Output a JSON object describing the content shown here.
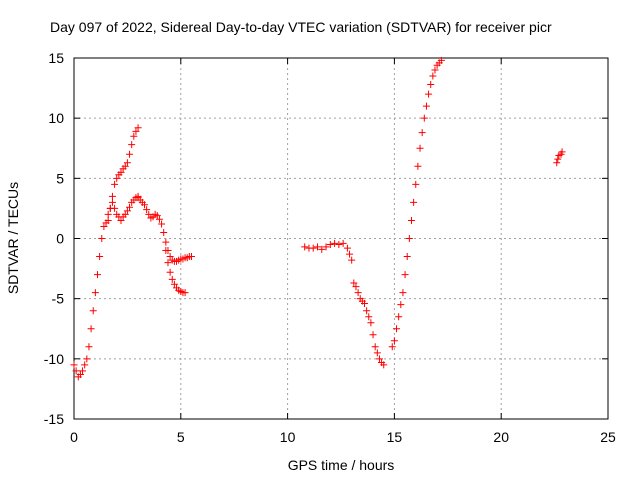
{
  "chart_data": {
    "type": "scatter",
    "title": "Day 097 of 2022, Sidereal Day-to-day VTEC variation (SDTVAR) for receiver picr",
    "xlabel": "GPS time / hours",
    "ylabel": "SDTVAR / TECUs",
    "xlim": [
      0,
      25
    ],
    "ylim": [
      -15,
      15
    ],
    "xticks": [
      0,
      5,
      10,
      15,
      20,
      25
    ],
    "yticks": [
      -15,
      -10,
      -5,
      0,
      5,
      10,
      15
    ],
    "xtick_labels": [
      "0",
      "5",
      "10",
      "15",
      "20",
      "25"
    ],
    "ytick_labels": [
      "-15",
      "-10",
      "-5",
      "0",
      "5",
      "10",
      "15"
    ],
    "grid": true,
    "marker": "+",
    "color": "#ff0000",
    "series": [
      {
        "name": "segment-1-lower",
        "x": [
          0.0,
          0.1,
          0.2,
          0.3,
          0.4,
          0.5,
          0.6,
          0.7,
          0.8,
          0.9,
          1.0,
          1.1,
          1.2,
          1.3,
          1.4,
          1.5,
          1.6,
          1.7,
          1.8,
          1.9,
          2.0,
          2.1,
          2.2,
          2.3,
          2.4,
          2.5,
          2.6,
          2.7,
          2.8,
          2.9,
          3.0
        ],
        "y": [
          -10.5,
          -11.0,
          -11.5,
          -11.3,
          -11.0,
          -10.5,
          -10.0,
          -9.0,
          -7.5,
          -6.0,
          -4.5,
          -3.0,
          -1.5,
          0.0,
          1.0,
          1.3,
          2.0,
          2.5,
          3.0,
          2.5,
          2.0,
          1.8,
          1.5,
          1.8,
          2.0,
          2.3,
          2.6,
          3.0,
          3.2,
          3.4,
          3.5
        ]
      },
      {
        "name": "segment-1-upper",
        "x": [
          1.6,
          1.7,
          1.8,
          1.9,
          2.0,
          2.1,
          2.2,
          2.3,
          2.4,
          2.5,
          2.6,
          2.7,
          2.8,
          2.9,
          3.0
        ],
        "y": [
          1.5,
          2.5,
          3.5,
          4.5,
          5.0,
          5.3,
          5.5,
          5.8,
          6.0,
          6.3,
          7.0,
          7.8,
          8.5,
          8.9,
          9.2
        ]
      },
      {
        "name": "segment-1-decay",
        "x": [
          3.0,
          3.1,
          3.2,
          3.3,
          3.4,
          3.5,
          3.6,
          3.7,
          3.8,
          3.9,
          4.0,
          4.1,
          4.2,
          4.3,
          4.4,
          4.5,
          4.6,
          4.7,
          4.8,
          4.9,
          5.0,
          5.1,
          5.2,
          5.3,
          5.4,
          5.5
        ],
        "y": [
          3.4,
          3.2,
          3.0,
          2.8,
          2.4,
          2.0,
          1.7,
          1.8,
          2.0,
          1.9,
          1.6,
          1.2,
          0.5,
          -0.3,
          -1.0,
          -1.5,
          -1.8,
          -1.9,
          -1.9,
          -1.8,
          -1.7,
          -1.7,
          -1.6,
          -1.6,
          -1.5,
          -1.5
        ]
      },
      {
        "name": "segment-1-low-branch",
        "x": [
          4.3,
          4.4,
          4.5,
          4.6,
          4.7,
          4.8,
          4.9,
          5.0,
          5.1,
          5.2
        ],
        "y": [
          -1.0,
          -2.0,
          -2.8,
          -3.4,
          -3.8,
          -4.1,
          -4.3,
          -4.4,
          -4.5,
          -4.5
        ]
      },
      {
        "name": "segment-2",
        "x": [
          10.8,
          11.0,
          11.2,
          11.4,
          11.6,
          11.8,
          12.0,
          12.2,
          12.4,
          12.6,
          12.8,
          12.9,
          13.0
        ],
        "y": [
          -0.7,
          -0.8,
          -0.8,
          -0.7,
          -0.9,
          -0.7,
          -0.5,
          -0.4,
          -0.5,
          -0.4,
          -0.8,
          -1.3,
          -1.8
        ]
      },
      {
        "name": "segment-3",
        "x": [
          13.1,
          13.2,
          13.3,
          13.4,
          13.5,
          13.6,
          13.7,
          13.8,
          13.9,
          14.0,
          14.1,
          14.2,
          14.3,
          14.4,
          14.5
        ],
        "y": [
          -3.7,
          -4.0,
          -4.5,
          -5.0,
          -5.2,
          -5.4,
          -6.0,
          -6.5,
          -7.0,
          -8.0,
          -9.0,
          -9.5,
          -10.0,
          -10.3,
          -10.5
        ]
      },
      {
        "name": "segment-4",
        "x": [
          14.9,
          15.0,
          15.1,
          15.2,
          15.3,
          15.4,
          15.5,
          15.6,
          15.7,
          15.8,
          15.9,
          16.0,
          16.1,
          16.2,
          16.3,
          16.4,
          16.5,
          16.6,
          16.7,
          16.8,
          16.9,
          17.0,
          17.1,
          17.2
        ],
        "y": [
          -9.0,
          -8.5,
          -7.5,
          -6.5,
          -5.5,
          -4.5,
          -3.0,
          -1.5,
          0.0,
          1.5,
          3.0,
          4.5,
          6.0,
          7.5,
          8.8,
          10.0,
          11.0,
          12.0,
          12.8,
          13.5,
          14.0,
          14.4,
          14.6,
          14.8
        ]
      },
      {
        "name": "segment-5",
        "x": [
          22.6,
          22.65,
          22.7,
          22.8,
          22.85
        ],
        "y": [
          6.3,
          6.6,
          6.9,
          7.0,
          7.2
        ]
      }
    ]
  }
}
